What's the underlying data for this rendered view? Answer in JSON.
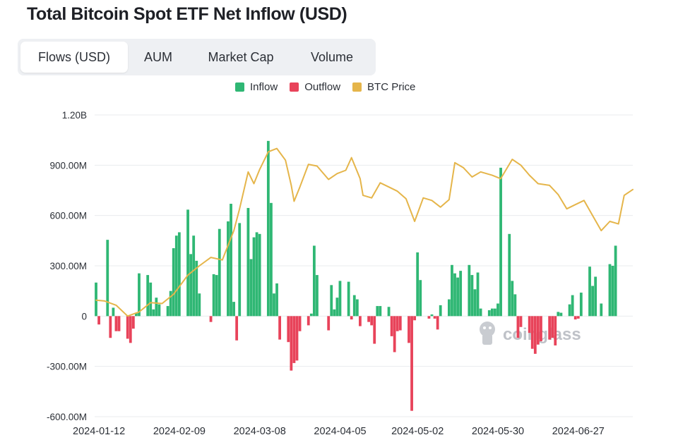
{
  "title": "Total Bitcoin Spot ETF Net Inflow (USD)",
  "tabs": [
    {
      "label": "Flows (USD)",
      "active": true
    },
    {
      "label": "AUM",
      "active": false
    },
    {
      "label": "Market Cap",
      "active": false
    },
    {
      "label": "Volume",
      "active": false
    }
  ],
  "colors": {
    "inflow": "#2fb774",
    "outflow": "#e8435a",
    "price": "#e5b54a",
    "grid": "#e9ebee"
  },
  "watermark": {
    "text": "coinglass",
    "icon": "coinglass-logo-icon"
  },
  "chart_data": {
    "type": "bar",
    "title": "Total Bitcoin Spot ETF Net Inflow (USD)",
    "ylim": [
      -600000000,
      1200000000
    ],
    "yticks": [
      "1.20B",
      "900.00M",
      "600.00M",
      "300.00M",
      "0",
      "-300.00M",
      "-600.00M"
    ],
    "xticks": [
      "2024-01-12",
      "2024-02-09",
      "2024-03-08",
      "2024-04-05",
      "2024-05-02",
      "2024-05-30",
      "2024-06-27"
    ],
    "xrange": [
      "2024-01-11",
      "2024-07-16"
    ],
    "grid": true,
    "legend": {
      "position": "top-center",
      "entries": [
        "Inflow",
        "Outflow",
        "BTC Price"
      ]
    },
    "flows": [
      [
        "2024-01-11",
        200
      ],
      [
        "2024-01-12",
        -50
      ],
      [
        "2024-01-15",
        455
      ],
      [
        "2024-01-16",
        -130
      ],
      [
        "2024-01-17",
        50
      ],
      [
        "2024-01-18",
        -90
      ],
      [
        "2024-01-19",
        -90
      ],
      [
        "2024-01-22",
        -135
      ],
      [
        "2024-01-23",
        -160
      ],
      [
        "2024-01-24",
        -75
      ],
      [
        "2024-01-25",
        20
      ],
      [
        "2024-01-26",
        255
      ],
      [
        "2024-01-29",
        245
      ],
      [
        "2024-01-30",
        200
      ],
      [
        "2024-01-31",
        40
      ],
      [
        "2024-02-01",
        110
      ],
      [
        "2024-02-02",
        70
      ],
      [
        "2024-02-05",
        60
      ],
      [
        "2024-02-06",
        150
      ],
      [
        "2024-02-07",
        405
      ],
      [
        "2024-02-08",
        480
      ],
      [
        "2024-02-09",
        500
      ],
      [
        "2024-02-12",
        635
      ],
      [
        "2024-02-13",
        370
      ],
      [
        "2024-02-14",
        480
      ],
      [
        "2024-02-15",
        330
      ],
      [
        "2024-02-16",
        135
      ],
      [
        "2024-02-20",
        -35
      ],
      [
        "2024-02-21",
        250
      ],
      [
        "2024-02-22",
        245
      ],
      [
        "2024-02-23",
        520
      ],
      [
        "2024-02-26",
        565
      ],
      [
        "2024-02-27",
        670
      ],
      [
        "2024-02-28",
        85
      ],
      [
        "2024-02-29",
        -145
      ],
      [
        "2024-03-01",
        555
      ],
      [
        "2024-03-04",
        645
      ],
      [
        "2024-03-05",
        340
      ],
      [
        "2024-03-06",
        470
      ],
      [
        "2024-03-07",
        500
      ],
      [
        "2024-03-08",
        490
      ],
      [
        "2024-03-11",
        1045
      ],
      [
        "2024-03-12",
        675
      ],
      [
        "2024-03-13",
        135
      ],
      [
        "2024-03-14",
        195
      ],
      [
        "2024-03-15",
        -140
      ],
      [
        "2024-03-18",
        -155
      ],
      [
        "2024-03-19",
        -325
      ],
      [
        "2024-03-20",
        -280
      ],
      [
        "2024-03-21",
        -265
      ],
      [
        "2024-03-22",
        -90
      ],
      [
        "2024-03-25",
        -55
      ],
      [
        "2024-03-26",
        15
      ],
      [
        "2024-03-27",
        420
      ],
      [
        "2024-03-28",
        245
      ],
      [
        "2024-04-01",
        -85
      ],
      [
        "2024-04-02",
        185
      ],
      [
        "2024-04-03",
        40
      ],
      [
        "2024-04-04",
        110
      ],
      [
        "2024-04-05",
        210
      ],
      [
        "2024-04-08",
        205
      ],
      [
        "2024-04-09",
        -20
      ],
      [
        "2024-04-10",
        125
      ],
      [
        "2024-04-11",
        100
      ],
      [
        "2024-04-12",
        -60
      ],
      [
        "2024-04-15",
        -35
      ],
      [
        "2024-04-16",
        -55
      ],
      [
        "2024-04-17",
        -165
      ],
      [
        "2024-04-18",
        60
      ],
      [
        "2024-04-19",
        60
      ],
      [
        "2024-04-22",
        55
      ],
      [
        "2024-04-23",
        -120
      ],
      [
        "2024-04-24",
        -215
      ],
      [
        "2024-04-25",
        -90
      ],
      [
        "2024-04-26",
        -85
      ],
      [
        "2024-04-29",
        -160
      ],
      [
        "2024-04-30",
        -565
      ],
      [
        "2024-05-01",
        -25
      ],
      [
        "2024-05-02",
        380
      ],
      [
        "2024-05-03",
        215
      ],
      [
        "2024-05-06",
        -15
      ],
      [
        "2024-05-07",
        10
      ],
      [
        "2024-05-08",
        -15
      ],
      [
        "2024-05-09",
        -80
      ],
      [
        "2024-05-10",
        65
      ],
      [
        "2024-05-13",
        100
      ],
      [
        "2024-05-14",
        305
      ],
      [
        "2024-05-15",
        255
      ],
      [
        "2024-05-16",
        230
      ],
      [
        "2024-05-17",
        270
      ],
      [
        "2024-05-20",
        305
      ],
      [
        "2024-05-21",
        245
      ],
      [
        "2024-05-22",
        160
      ],
      [
        "2024-05-23",
        260
      ],
      [
        "2024-05-24",
        45
      ],
      [
        "2024-05-27",
        35
      ],
      [
        "2024-05-28",
        45
      ],
      [
        "2024-05-29",
        45
      ],
      [
        "2024-05-30",
        75
      ],
      [
        "2024-05-31",
        885
      ],
      [
        "2024-06-03",
        490
      ],
      [
        "2024-06-04",
        210
      ],
      [
        "2024-06-05",
        130
      ],
      [
        "2024-06-06",
        -130
      ],
      [
        "2024-06-07",
        -65
      ],
      [
        "2024-06-10",
        -100
      ],
      [
        "2024-06-11",
        -195
      ],
      [
        "2024-06-12",
        -225
      ],
      [
        "2024-06-13",
        -170
      ],
      [
        "2024-06-14",
        -150
      ],
      [
        "2024-06-17",
        -140
      ],
      [
        "2024-06-18",
        -130
      ],
      [
        "2024-06-19",
        -175
      ],
      [
        "2024-06-20",
        25
      ],
      [
        "2024-06-21",
        20
      ],
      [
        "2024-06-24",
        70
      ],
      [
        "2024-06-25",
        125
      ],
      [
        "2024-06-26",
        -20
      ],
      [
        "2024-06-27",
        -15
      ],
      [
        "2024-06-28",
        140
      ],
      [
        "2024-07-01",
        295
      ],
      [
        "2024-07-02",
        180
      ],
      [
        "2024-07-03",
        235
      ],
      [
        "2024-07-05",
        75
      ],
      [
        "2024-07-08",
        310
      ],
      [
        "2024-07-09",
        300
      ],
      [
        "2024-07-10",
        420
      ]
    ],
    "flows_unit": "USD millions",
    "price": [
      [
        "2024-01-11",
        95
      ],
      [
        "2024-01-14",
        90
      ],
      [
        "2024-01-18",
        65
      ],
      [
        "2024-01-22",
        0
      ],
      [
        "2024-01-26",
        25
      ],
      [
        "2024-01-30",
        80
      ],
      [
        "2024-02-03",
        75
      ],
      [
        "2024-02-07",
        130
      ],
      [
        "2024-02-12",
        245
      ],
      [
        "2024-02-16",
        300
      ],
      [
        "2024-02-20",
        350
      ],
      [
        "2024-02-24",
        335
      ],
      [
        "2024-02-28",
        510
      ],
      [
        "2024-03-01",
        640
      ],
      [
        "2024-03-04",
        860
      ],
      [
        "2024-03-06",
        790
      ],
      [
        "2024-03-08",
        875
      ],
      [
        "2024-03-11",
        980
      ],
      [
        "2024-03-14",
        1000
      ],
      [
        "2024-03-17",
        930
      ],
      [
        "2024-03-19",
        780
      ],
      [
        "2024-03-20",
        685
      ],
      [
        "2024-03-22",
        770
      ],
      [
        "2024-03-25",
        905
      ],
      [
        "2024-03-28",
        895
      ],
      [
        "2024-04-01",
        815
      ],
      [
        "2024-04-04",
        850
      ],
      [
        "2024-04-07",
        870
      ],
      [
        "2024-04-09",
        945
      ],
      [
        "2024-04-12",
        820
      ],
      [
        "2024-04-13",
        720
      ],
      [
        "2024-04-16",
        705
      ],
      [
        "2024-04-19",
        795
      ],
      [
        "2024-04-22",
        770
      ],
      [
        "2024-04-25",
        745
      ],
      [
        "2024-04-28",
        700
      ],
      [
        "2024-05-01",
        565
      ],
      [
        "2024-05-04",
        705
      ],
      [
        "2024-05-07",
        690
      ],
      [
        "2024-05-10",
        650
      ],
      [
        "2024-05-13",
        695
      ],
      [
        "2024-05-15",
        915
      ],
      [
        "2024-05-18",
        885
      ],
      [
        "2024-05-21",
        830
      ],
      [
        "2024-05-24",
        860
      ],
      [
        "2024-05-28",
        840
      ],
      [
        "2024-05-31",
        820
      ],
      [
        "2024-06-04",
        935
      ],
      [
        "2024-06-07",
        900
      ],
      [
        "2024-06-10",
        840
      ],
      [
        "2024-06-13",
        790
      ],
      [
        "2024-06-17",
        780
      ],
      [
        "2024-06-20",
        725
      ],
      [
        "2024-06-23",
        640
      ],
      [
        "2024-06-26",
        665
      ],
      [
        "2024-06-29",
        690
      ],
      [
        "2024-07-02",
        600
      ],
      [
        "2024-07-05",
        510
      ],
      [
        "2024-07-08",
        565
      ],
      [
        "2024-07-11",
        550
      ],
      [
        "2024-07-13",
        720
      ],
      [
        "2024-07-16",
        755
      ]
    ],
    "price_note": "BTC Price has no printed axis; values are plotted on the flows scale"
  }
}
